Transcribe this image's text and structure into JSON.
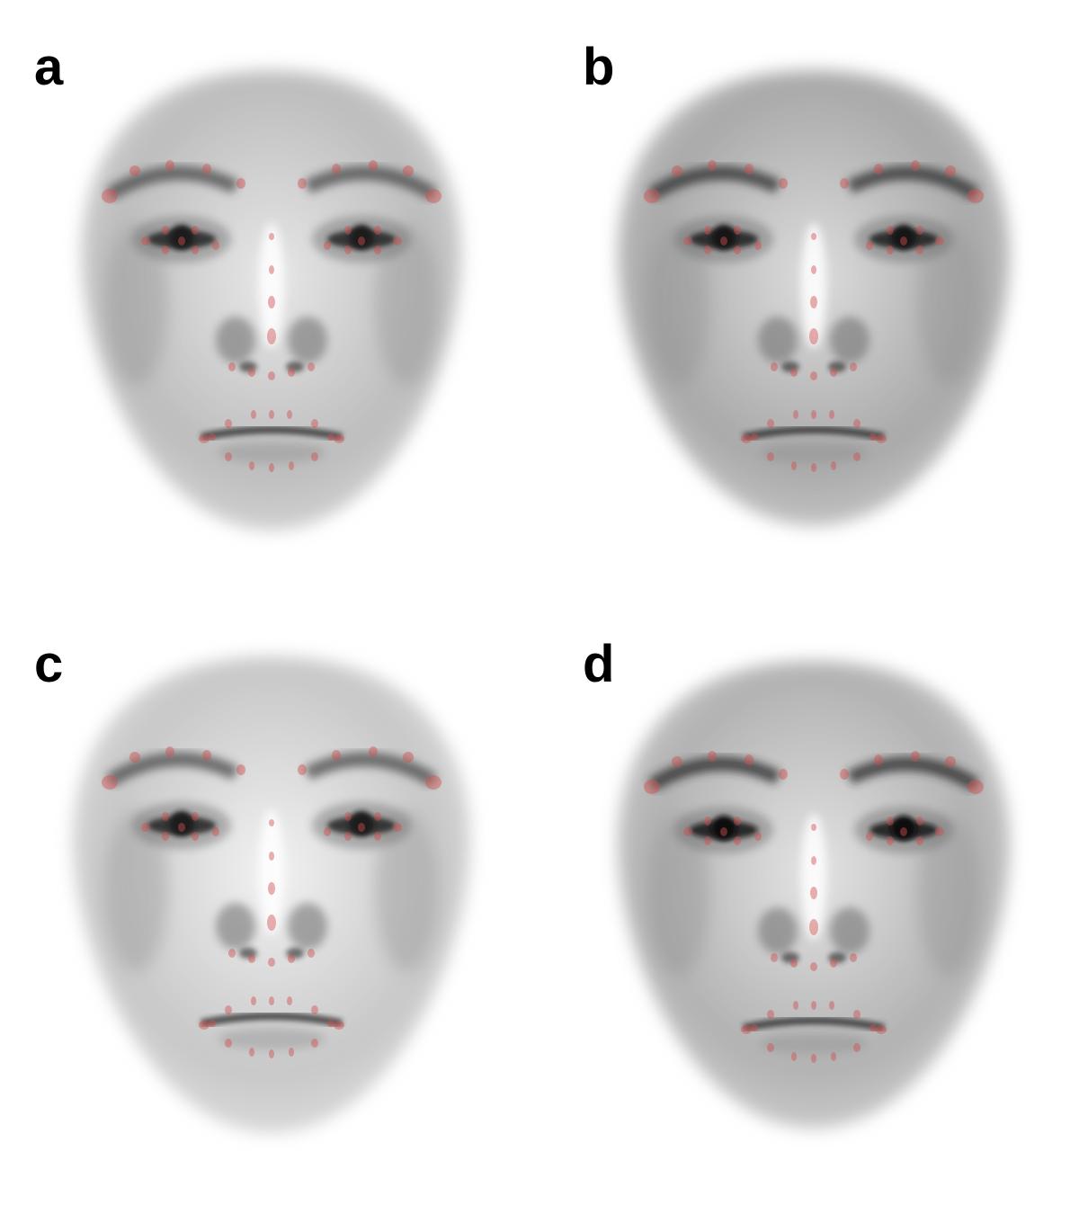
{
  "figure": {
    "panels": [
      {
        "id": "a",
        "label": "a",
        "tone": {
          "skin": "#bdbdbd",
          "light": "#e8e8e8",
          "dark": "#1e1e1e",
          "brow": "#4a4a4a"
        }
      },
      {
        "id": "b",
        "label": "b",
        "tone": {
          "skin": "#a9a9a9",
          "light": "#dddddd",
          "dark": "#141414",
          "brow": "#2e2e2e"
        }
      },
      {
        "id": "c",
        "label": "c",
        "tone": {
          "skin": "#c8c8c8",
          "light": "#f2f2f2",
          "dark": "#1a1a1a",
          "brow": "#4c4c4c"
        }
      },
      {
        "id": "d",
        "label": "d",
        "tone": {
          "skin": "#b2b2b2",
          "light": "#e4e4e4",
          "dark": "#111111",
          "brow": "#262626"
        }
      }
    ],
    "landmark_color": "#d05050"
  }
}
